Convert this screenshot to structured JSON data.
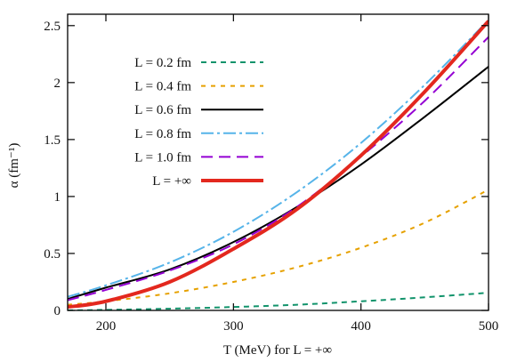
{
  "chart_data": {
    "type": "line",
    "xlabel": "T (MeV) for L = +∞",
    "ylabel": "α (fm⁻¹)",
    "xlim": [
      170,
      500
    ],
    "ylim": [
      0,
      2.6
    ],
    "xticks": [
      200,
      300,
      400,
      500
    ],
    "xtick_labels": [
      "200",
      "300",
      "400",
      "500"
    ],
    "yticks": [
      0,
      0.5,
      1,
      1.5,
      2,
      2.5
    ],
    "ytick_labels": [
      "0",
      "0.5",
      "1",
      "1.5",
      "2",
      "2.5"
    ],
    "grid": false,
    "legend_position": "top-left",
    "series": [
      {
        "name": "L = 0.2 fm",
        "color": "#11936b",
        "dash": "short-dash",
        "width": 2,
        "x": [
          170,
          200,
          250,
          300,
          350,
          400,
          450,
          500
        ],
        "y": [
          0.0,
          0.005,
          0.015,
          0.03,
          0.05,
          0.08,
          0.115,
          0.155
        ]
      },
      {
        "name": "L = 0.4 fm",
        "color": "#e6a100",
        "dash": "dot-dash",
        "width": 2,
        "x": [
          170,
          200,
          250,
          300,
          350,
          400,
          450,
          500
        ],
        "y": [
          0.05,
          0.08,
          0.15,
          0.25,
          0.38,
          0.55,
          0.77,
          1.06
        ]
      },
      {
        "name": "L = 0.6 fm",
        "color": "#000000",
        "dash": "solid",
        "width": 2,
        "x": [
          170,
          200,
          250,
          300,
          350,
          400,
          450,
          500
        ],
        "y": [
          0.1,
          0.2,
          0.36,
          0.6,
          0.91,
          1.28,
          1.7,
          2.14
        ]
      },
      {
        "name": "L = 0.8 fm",
        "color": "#56b4e9",
        "dash": "dash-dot",
        "width": 2,
        "x": [
          170,
          200,
          250,
          300,
          350,
          400,
          450,
          500
        ],
        "y": [
          0.12,
          0.22,
          0.42,
          0.69,
          1.04,
          1.47,
          1.98,
          2.55
        ]
      },
      {
        "name": "L = 1.0 fm",
        "color": "#9400d3",
        "dash": "long-dash",
        "width": 2,
        "x": [
          170,
          200,
          250,
          300,
          350,
          400,
          450,
          500
        ],
        "y": [
          0.09,
          0.18,
          0.35,
          0.58,
          0.91,
          1.35,
          1.84,
          2.4
        ]
      },
      {
        "name": "L = +∞",
        "color": "#e3281e",
        "dash": "solid",
        "width": 4,
        "x": [
          170,
          200,
          250,
          300,
          350,
          400,
          450,
          500
        ],
        "y": [
          0.03,
          0.08,
          0.25,
          0.54,
          0.89,
          1.36,
          1.92,
          2.54
        ]
      }
    ]
  }
}
